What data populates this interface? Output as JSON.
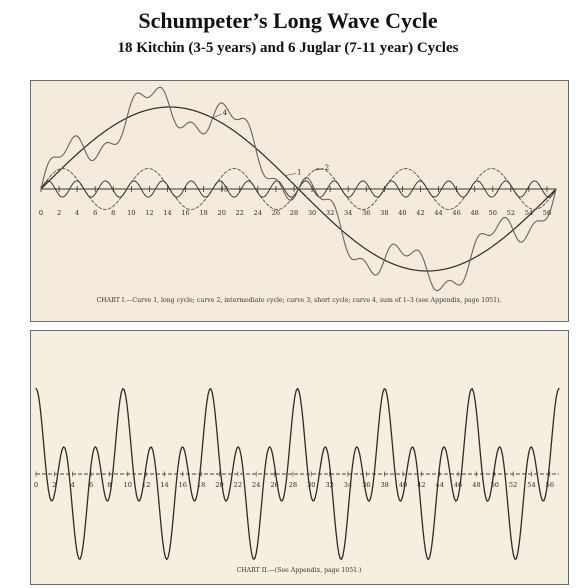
{
  "header": {
    "title": "Schumpeter’s Long Wave Cycle",
    "subtitle": "18 Kitchin (3-5 years) and 6 Juglar (7-11 year) Cycles"
  },
  "chart_data": [
    {
      "type": "line",
      "caption": "CHART I.—Curve 1, long cycle; curve 2, intermediate cycle; curve 3, short cycle; curve 4, sum of 1–3 (see Appendix, page 1051).",
      "x_ticks": [
        "0",
        "2",
        "4",
        "6",
        "8",
        "10",
        "12",
        "14",
        "16",
        "18",
        "20",
        "22",
        "24",
        "26",
        "28",
        "30",
        "32",
        "34",
        "36",
        "38",
        "40",
        "42",
        "44",
        "46",
        "48",
        "50",
        "52",
        "54",
        "56"
      ],
      "xlim": [
        0,
        57
      ],
      "grid": false,
      "series": [
        {
          "name": "1",
          "kind": "long cycle",
          "period_years": 57,
          "amplitude": 1.0,
          "color": "#2e2a26"
        },
        {
          "name": "2",
          "kind": "intermediate cycle",
          "period_years": 9.5,
          "amplitude": 0.25,
          "color": "#5a544c",
          "dashed": true
        },
        {
          "name": "3",
          "kind": "short cycle",
          "period_years": 3.1667,
          "amplitude": 0.1,
          "color": "#2e2a26"
        },
        {
          "name": "4",
          "kind": "sum of 1-3",
          "color": "#6a645c"
        }
      ]
    },
    {
      "type": "line",
      "caption": "CHART II.—(See Appendix, page 1051.)",
      "x_ticks": [
        "0",
        "2",
        "4",
        "6",
        "8",
        "10",
        "12",
        "14",
        "16",
        "18",
        "20",
        "22",
        "24",
        "26",
        "28",
        "30",
        "32",
        "34",
        "36",
        "38",
        "40",
        "42",
        "44",
        "46",
        "48",
        "50",
        "52",
        "54",
        "56"
      ],
      "xlim": [
        0,
        57
      ],
      "grid": false,
      "series": [
        {
          "components": [
            {
              "period_years": 9.5,
              "amplitude": 0.42
            },
            {
              "period_years": 3.1667,
              "amplitude": 0.48
            }
          ],
          "color": "#2f2b27"
        }
      ]
    }
  ]
}
